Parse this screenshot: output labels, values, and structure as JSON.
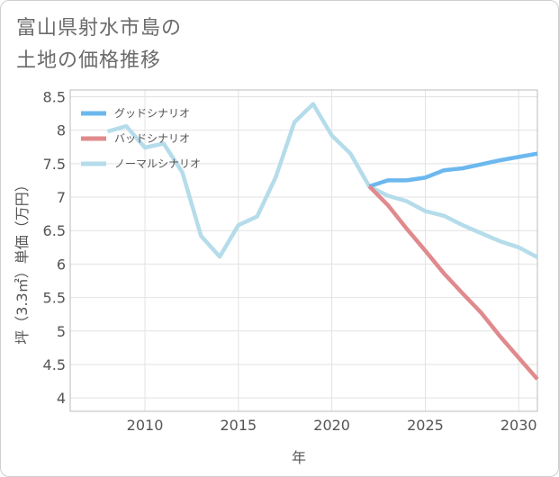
{
  "title_lines": [
    "富山県射水市島の",
    "土地の価格推移"
  ],
  "chart_data": {
    "type": "line",
    "title": "富山県射水市島の土地の価格推移",
    "xlabel": "年",
    "ylabel": "坪（3.3㎡）単価（万円）",
    "xlim": [
      2006,
      2031
    ],
    "ylim": [
      3.8,
      8.6
    ],
    "x_ticks": [
      2010,
      2015,
      2020,
      2025,
      2030
    ],
    "y_ticks": [
      4,
      4.5,
      5,
      5.5,
      6,
      6.5,
      7,
      7.5,
      8,
      8.5
    ],
    "grid": true,
    "legend_position": "top-left",
    "series": [
      {
        "name": "グッドシナリオ",
        "color": "#6cb8ee",
        "x": [
          2022,
          2023,
          2024,
          2025,
          2026,
          2027,
          2028,
          2029,
          2030,
          2031
        ],
        "y": [
          7.16,
          7.25,
          7.25,
          7.29,
          7.4,
          7.43,
          7.49,
          7.55,
          7.6,
          7.65
        ]
      },
      {
        "name": "バッドシナリオ",
        "color": "#e08a8d",
        "x": [
          2022,
          2023,
          2024,
          2025,
          2026,
          2027,
          2028,
          2029,
          2030,
          2031
        ],
        "y": [
          7.16,
          6.88,
          6.53,
          6.2,
          5.86,
          5.56,
          5.27,
          4.92,
          4.6,
          4.28
        ]
      },
      {
        "name": "ノーマルシナリオ",
        "color": "#b5dcea",
        "x": [
          2008,
          2009,
          2010,
          2011,
          2012,
          2013,
          2014,
          2015,
          2016,
          2017,
          2018,
          2019,
          2020,
          2021,
          2022,
          2023,
          2024,
          2025,
          2026,
          2027,
          2028,
          2029,
          2030,
          2031
        ],
        "y": [
          7.98,
          8.06,
          7.74,
          7.8,
          7.37,
          6.42,
          6.11,
          6.58,
          6.71,
          7.3,
          8.12,
          8.39,
          7.92,
          7.65,
          7.16,
          7.02,
          6.94,
          6.79,
          6.72,
          6.58,
          6.46,
          6.34,
          6.25,
          6.1
        ]
      }
    ]
  }
}
